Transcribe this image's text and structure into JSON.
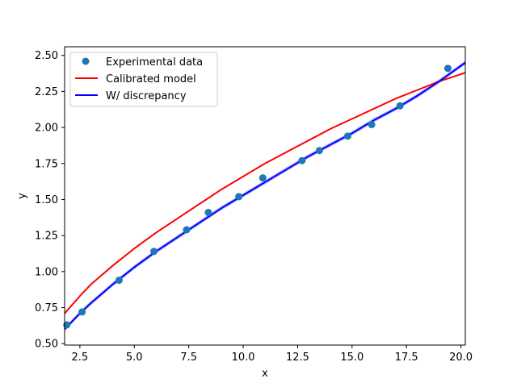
{
  "chart_data": {
    "type": "line",
    "title": "",
    "xlabel": "x",
    "ylabel": "y",
    "xlim": [
      1.8,
      20.2
    ],
    "ylim": [
      0.49,
      2.56
    ],
    "grid": false,
    "legend_position": "top-left",
    "xticks": [
      2.5,
      5.0,
      7.5,
      10.0,
      12.5,
      15.0,
      17.5,
      20.0
    ],
    "xtick_labels": [
      "2.5",
      "5.0",
      "7.5",
      "10.0",
      "12.5",
      "15.0",
      "17.5",
      "20.0"
    ],
    "yticks": [
      0.5,
      0.75,
      1.0,
      1.25,
      1.5,
      1.75,
      2.0,
      2.25,
      2.5
    ],
    "ytick_labels": [
      "0.50",
      "0.75",
      "1.00",
      "1.25",
      "1.50",
      "1.75",
      "2.00",
      "2.25",
      "2.50"
    ],
    "series": [
      {
        "name": "Experimental data",
        "kind": "scatter",
        "color": "#1f77b4",
        "x": [
          1.9,
          2.6,
          4.3,
          5.9,
          7.4,
          8.4,
          9.8,
          10.9,
          12.7,
          13.5,
          14.8,
          15.9,
          17.2,
          19.4
        ],
        "y": [
          0.63,
          0.72,
          0.94,
          1.14,
          1.29,
          1.41,
          1.52,
          1.65,
          1.77,
          1.84,
          1.94,
          2.02,
          2.15,
          2.41
        ]
      },
      {
        "name": "Calibrated model",
        "kind": "line",
        "color": "#ff0000",
        "x": [
          1.8,
          2.5,
          3.0,
          4.0,
          5.0,
          6.0,
          7.0,
          8.0,
          9.0,
          10.0,
          11.0,
          12.0,
          13.0,
          14.0,
          15.0,
          16.0,
          17.0,
          18.0,
          19.0,
          20.2
        ],
        "y": [
          0.71,
          0.83,
          0.91,
          1.04,
          1.16,
          1.27,
          1.37,
          1.47,
          1.57,
          1.66,
          1.75,
          1.83,
          1.91,
          1.99,
          2.06,
          2.13,
          2.2,
          2.26,
          2.32,
          2.38
        ]
      },
      {
        "name": "W/ discrepancy",
        "kind": "line",
        "color": "#0000ff",
        "x": [
          1.8,
          2.5,
          3.0,
          4.0,
          5.0,
          6.0,
          7.0,
          8.0,
          9.0,
          10.0,
          11.0,
          12.0,
          13.0,
          14.0,
          15.0,
          16.0,
          17.0,
          18.0,
          19.0,
          20.2
        ],
        "y": [
          0.6,
          0.71,
          0.78,
          0.91,
          1.03,
          1.14,
          1.24,
          1.34,
          1.44,
          1.53,
          1.62,
          1.71,
          1.8,
          1.88,
          1.96,
          2.05,
          2.13,
          2.22,
          2.32,
          2.45
        ]
      }
    ]
  }
}
